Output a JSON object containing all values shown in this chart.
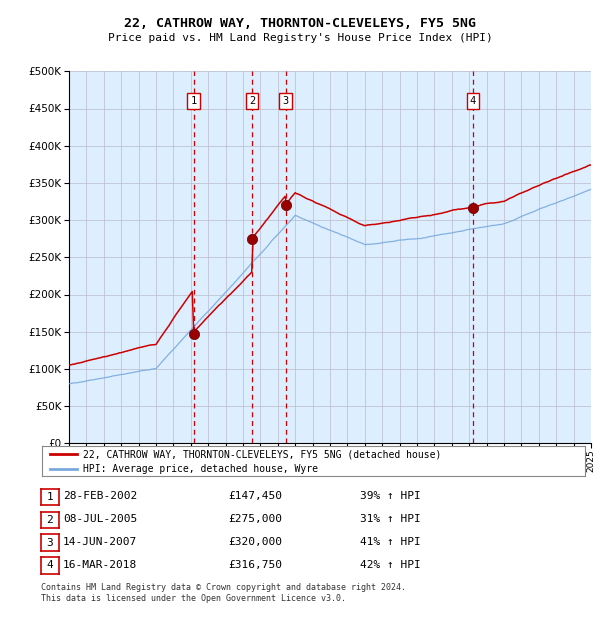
{
  "title": "22, CATHROW WAY, THORNTON-CLEVELEYS, FY5 5NG",
  "subtitle": "Price paid vs. HM Land Registry's House Price Index (HPI)",
  "legend_line1": "22, CATHROW WAY, THORNTON-CLEVELEYS, FY5 5NG (detached house)",
  "legend_line2": "HPI: Average price, detached house, Wyre",
  "footnote1": "Contains HM Land Registry data © Crown copyright and database right 2024.",
  "footnote2": "This data is licensed under the Open Government Licence v3.0.",
  "transactions": [
    {
      "num": 1,
      "date": "28-FEB-2002",
      "price": 147450,
      "pct": "39%",
      "dir": "↑",
      "x_year": 2002.16
    },
    {
      "num": 2,
      "date": "08-JUL-2005",
      "price": 275000,
      "pct": "31%",
      "dir": "↑",
      "x_year": 2005.52
    },
    {
      "num": 3,
      "date": "14-JUN-2007",
      "price": 320000,
      "pct": "41%",
      "dir": "↑",
      "x_year": 2007.45
    },
    {
      "num": 4,
      "date": "16-MAR-2018",
      "price": 316750,
      "pct": "42%",
      "dir": "↑",
      "x_year": 2018.21
    }
  ],
  "ylim": [
    0,
    500000
  ],
  "xlim": [
    1995,
    2025
  ],
  "hpi_color": "#7aaadd",
  "price_color": "#cc0000",
  "bg_color": "#ddeeff",
  "plot_bg": "#ffffff",
  "grid_color": "#bbbbcc",
  "vline_color": "#cc0000"
}
